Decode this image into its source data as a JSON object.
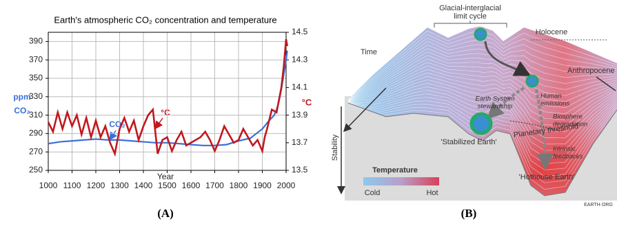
{
  "chart_data": {
    "type": "line",
    "title": "Earth's atmospheric CO₂ concentration and temperature",
    "xlabel": "Year",
    "ylabel": [
      "ppm",
      "CO₂"
    ],
    "y2label": "°C",
    "xlim": [
      1000,
      2000
    ],
    "xticks": [
      1000,
      1100,
      1200,
      1300,
      1400,
      1500,
      1600,
      1700,
      1800,
      1900,
      2000
    ],
    "ylim": [
      250,
      400
    ],
    "yticks": [
      250,
      270,
      290,
      310,
      330,
      350,
      370,
      390
    ],
    "y2lim": [
      13.5,
      14.5
    ],
    "y2ticks": [
      13.5,
      13.7,
      13.9,
      14.1,
      14.3,
      14.5
    ],
    "grid": true,
    "series": [
      {
        "name": "CO₂",
        "color": "#3a6fd8",
        "axis": "y",
        "x": [
          1000,
          1050,
          1100,
          1150,
          1200,
          1250,
          1300,
          1350,
          1400,
          1450,
          1500,
          1550,
          1600,
          1650,
          1700,
          1750,
          1800,
          1850,
          1900,
          1925,
          1950,
          1960,
          1970,
          1980,
          1990,
          2000,
          2005
        ],
        "values": [
          279,
          281,
          282,
          283,
          284,
          283,
          283,
          282,
          281,
          280,
          280,
          279,
          278,
          277,
          277,
          278,
          282,
          285,
          295,
          303,
          310,
          316,
          325,
          338,
          354,
          370,
          380
        ]
      },
      {
        "name": "°C",
        "color": "#c0181e",
        "axis": "y2",
        "x": [
          1000,
          1020,
          1040,
          1060,
          1080,
          1100,
          1120,
          1140,
          1160,
          1180,
          1200,
          1220,
          1240,
          1260,
          1280,
          1300,
          1320,
          1340,
          1360,
          1380,
          1400,
          1420,
          1440,
          1460,
          1480,
          1500,
          1520,
          1540,
          1560,
          1580,
          1600,
          1620,
          1640,
          1660,
          1680,
          1700,
          1720,
          1740,
          1760,
          1780,
          1800,
          1820,
          1840,
          1860,
          1880,
          1900,
          1910,
          1920,
          1940,
          1960,
          1980,
          1990,
          2000,
          2005
        ],
        "values": [
          13.85,
          13.78,
          13.92,
          13.8,
          13.92,
          13.82,
          13.9,
          13.76,
          13.88,
          13.74,
          13.86,
          13.74,
          13.82,
          13.7,
          13.62,
          13.8,
          13.88,
          13.78,
          13.86,
          13.72,
          13.82,
          13.9,
          13.94,
          13.62,
          13.72,
          13.74,
          13.64,
          13.72,
          13.78,
          13.68,
          13.7,
          13.72,
          13.74,
          13.78,
          13.72,
          13.64,
          13.72,
          13.82,
          13.76,
          13.7,
          13.72,
          13.8,
          13.74,
          13.68,
          13.72,
          13.64,
          13.74,
          13.8,
          13.94,
          13.92,
          14.1,
          14.25,
          14.45,
          14.4
        ]
      }
    ]
  },
  "diagram": {
    "limit_cycle": [
      "Glacial-interglacial",
      "limit cycle"
    ],
    "holocene": "Holocene",
    "time": "Time",
    "anthropocene": "Anthropocene",
    "stewardship": [
      "Earth System",
      "stewardship"
    ],
    "emissions": [
      "Human",
      "emissions"
    ],
    "biosphere": [
      "Biosphere",
      "degradation"
    ],
    "threshold": "Planetary threshold",
    "feedbacks": [
      "Intrinsic",
      "feedbacks"
    ],
    "stabilized": "'Stabilized Earth'",
    "hothouse": "'Hothouse Earth'",
    "stability": "Stability",
    "legend": {
      "title": "Temperature",
      "cold": "Cold",
      "hot": "Hot"
    },
    "credit": "EARTH·ORG"
  },
  "captions": [
    "(A)",
    "(B)"
  ]
}
